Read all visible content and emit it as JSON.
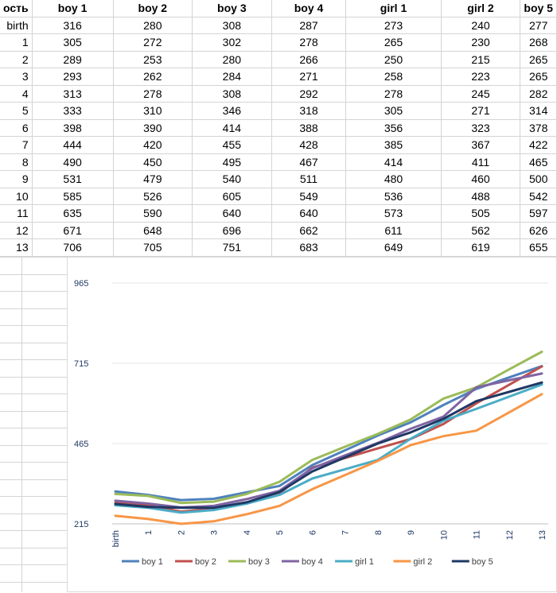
{
  "table": {
    "row_header_label": "ость",
    "columns": [
      "boy 1",
      "boy 2",
      "boy 3",
      "boy 4",
      "girl 1",
      "girl 2",
      "boy 5"
    ],
    "rows": [
      {
        "label": "birth",
        "values": [
          "316",
          "280",
          "308",
          "287",
          "273",
          "240",
          "277"
        ]
      },
      {
        "label": "1",
        "values": [
          "305",
          "272",
          "302",
          "278",
          "265",
          "230",
          "268"
        ]
      },
      {
        "label": "2",
        "values": [
          "289",
          "253",
          "280",
          "266",
          "250",
          "215",
          "265"
        ]
      },
      {
        "label": "3",
        "values": [
          "293",
          "262",
          "284",
          "271",
          "258",
          "223",
          "265"
        ]
      },
      {
        "label": "4",
        "values": [
          "313",
          "278",
          "308",
          "292",
          "278",
          "245",
          "282"
        ]
      },
      {
        "label": "5",
        "values": [
          "333",
          "310",
          "346",
          "318",
          "305",
          "271",
          "314"
        ]
      },
      {
        "label": "6",
        "values": [
          "398",
          "390",
          "414",
          "388",
          "356",
          "323",
          "378"
        ]
      },
      {
        "label": "7",
        "values": [
          "444",
          "420",
          "455",
          "428",
          "385",
          "367",
          "422"
        ]
      },
      {
        "label": "8",
        "values": [
          "490",
          "450",
          "495",
          "467",
          "414",
          "411",
          "465"
        ]
      },
      {
        "label": "9",
        "values": [
          "531",
          "479",
          "540",
          "511",
          "480",
          "460",
          "500"
        ]
      },
      {
        "label": "10",
        "values": [
          "585",
          "526",
          "605",
          "549",
          "536",
          "488",
          "542"
        ]
      },
      {
        "label": "11",
        "values": [
          "635",
          "590",
          "640",
          "640",
          "573",
          "505",
          "597"
        ]
      },
      {
        "label": "12",
        "values": [
          "671",
          "648",
          "696",
          "662",
          "611",
          "562",
          "626"
        ]
      },
      {
        "label": "13",
        "values": [
          "706",
          "705",
          "751",
          "683",
          "649",
          "619",
          "655"
        ]
      }
    ]
  },
  "chart_data": {
    "type": "line",
    "x": [
      "birth",
      "1",
      "2",
      "3",
      "4",
      "5",
      "6",
      "7",
      "8",
      "9",
      "10",
      "11",
      "12",
      "13"
    ],
    "ylim": [
      215,
      965
    ],
    "yticks": [
      "965",
      "715",
      "465",
      "215"
    ],
    "legend_position": "bottom",
    "series": [
      {
        "name": "boy 1",
        "color": "#4f81bd",
        "values": [
          316,
          305,
          289,
          293,
          313,
          333,
          398,
          444,
          490,
          531,
          585,
          635,
          671,
          706
        ]
      },
      {
        "name": "boy 2",
        "color": "#c0504d",
        "values": [
          280,
          272,
          253,
          262,
          278,
          310,
          390,
          420,
          450,
          479,
          526,
          590,
          648,
          705
        ]
      },
      {
        "name": "boy 3",
        "color": "#9bbb59",
        "values": [
          308,
          302,
          280,
          284,
          308,
          346,
          414,
          455,
          495,
          540,
          605,
          640,
          696,
          751
        ]
      },
      {
        "name": "boy 4",
        "color": "#8064a2",
        "values": [
          287,
          278,
          266,
          271,
          292,
          318,
          388,
          428,
          467,
          511,
          549,
          640,
          662,
          683
        ]
      },
      {
        "name": "girl 1",
        "color": "#4bacc6",
        "values": [
          273,
          265,
          250,
          258,
          278,
          305,
          356,
          385,
          414,
          480,
          536,
          573,
          611,
          649
        ]
      },
      {
        "name": "girl 2",
        "color": "#f79646",
        "values": [
          240,
          230,
          215,
          223,
          245,
          271,
          323,
          367,
          411,
          460,
          488,
          505,
          562,
          619
        ]
      },
      {
        "name": "boy 5",
        "color": "#1f3864",
        "values": [
          277,
          268,
          265,
          265,
          282,
          314,
          378,
          422,
          465,
          500,
          542,
          597,
          626,
          655
        ]
      }
    ]
  }
}
